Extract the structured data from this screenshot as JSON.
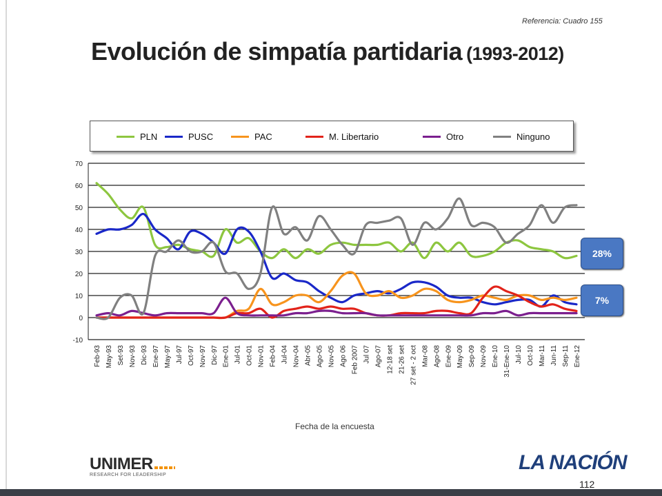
{
  "header": {
    "reference": "Referencia: Cuadro 155",
    "title": "Evolución de simpatía partidaria",
    "title_years": "(1993-2012)"
  },
  "callouts": {
    "top": "28%",
    "bottom": "7%"
  },
  "footer": {
    "unimer_brand": "UNIMER",
    "unimer_tagline": "RESEARCH FOR LEADERSHIP",
    "lanacion_brand": "LA NACIÓN",
    "page_number": "112"
  },
  "chart_data": {
    "type": "line",
    "title": "Evolución de simpatía partidaria (1993-2012)",
    "xlabel": "Fecha de la encuesta",
    "ylabel": "",
    "ylim": [
      -10,
      70
    ],
    "yticks": [
      -10,
      0,
      10,
      20,
      30,
      40,
      50,
      60,
      70
    ],
    "grid": true,
    "legend_position": "top",
    "categories": [
      "Feb-93",
      "May-93",
      "Set-93",
      "Nov-93",
      "Dic-93",
      "Ene-97",
      "May-97",
      "Jul-97",
      "Oct-97",
      "Nov-97",
      "Dic-97",
      "Ene-01",
      "Jul-01",
      "Oct-01",
      "Nov-01",
      "Feb-04",
      "Jul-04",
      "Nov-04",
      "Abr-05",
      "Ago-05",
      "Nov-05",
      "Ago 06",
      "Feb 2007",
      "Jul 07",
      "Ago-07",
      "12-18 set",
      "21-26 set",
      "27 set - 2 oct",
      "Mar-08",
      "Ago-08",
      "Ene-09",
      "May-09",
      "Sep-09",
      "Nov-09",
      "Ene-10",
      "31-Ene-10",
      "Jul-10",
      "Oct-10",
      "Mar-11",
      "Jun-11",
      "Sep-11",
      "Ene-12"
    ],
    "series": [
      {
        "name": "PLN",
        "color": "#8dc63f",
        "values": [
          61,
          56,
          49,
          45,
          50,
          33,
          32,
          33,
          31,
          30,
          28,
          40,
          34,
          36,
          30,
          27,
          31,
          27,
          31,
          29,
          33,
          34,
          33,
          33,
          33,
          34,
          30,
          34,
          27,
          34,
          30,
          34,
          28,
          28,
          30,
          34,
          35,
          32,
          31,
          30,
          27,
          28
        ]
      },
      {
        "name": "PUSC",
        "color": "#1a28c8",
        "values": [
          38,
          40,
          40,
          42,
          47,
          40,
          36,
          31,
          39,
          38,
          34,
          29,
          40,
          39,
          30,
          18,
          20,
          17,
          16,
          12,
          9,
          7,
          10,
          11,
          12,
          11,
          13,
          16,
          16,
          14,
          10,
          9,
          9,
          7,
          6,
          7,
          8,
          8,
          5,
          10,
          7,
          6
        ]
      },
      {
        "name": "PAC",
        "color": "#f7941d",
        "values": [
          0,
          0,
          0,
          0,
          0,
          0,
          0,
          0,
          0,
          0,
          0,
          0,
          3,
          4,
          13,
          6,
          7,
          10,
          10,
          7,
          12,
          19,
          20,
          11,
          10,
          12,
          9,
          10,
          13,
          12,
          8,
          7,
          8,
          10,
          9,
          8,
          10,
          10,
          8,
          9,
          8,
          9
        ]
      },
      {
        "name": "M. Libertario",
        "color": "#e2231a",
        "values": [
          0,
          0,
          0,
          0,
          0,
          0,
          0,
          0,
          0,
          0,
          0,
          0,
          2,
          2,
          4,
          0,
          3,
          4,
          5,
          4,
          5,
          4,
          4,
          2,
          1,
          1,
          2,
          2,
          2,
          3,
          3,
          2,
          2,
          9,
          14,
          12,
          10,
          7,
          5,
          6,
          4,
          3
        ]
      },
      {
        "name": "Otro",
        "color": "#7b1f8e",
        "values": [
          1,
          2,
          1,
          3,
          2,
          1,
          2,
          2,
          2,
          2,
          2,
          9,
          2,
          1,
          1,
          1,
          1,
          2,
          2,
          3,
          3,
          2,
          2,
          2,
          1,
          1,
          1,
          1,
          1,
          1,
          1,
          1,
          1,
          2,
          2,
          3,
          1,
          2,
          2,
          2,
          2,
          2
        ]
      },
      {
        "name": "Ninguno",
        "color": "#808080",
        "values": [
          0,
          0,
          9,
          10,
          2,
          28,
          30,
          35,
          30,
          30,
          34,
          21,
          20,
          13,
          20,
          50,
          38,
          41,
          35,
          46,
          40,
          33,
          29,
          42,
          43,
          44,
          45,
          33,
          43,
          40,
          45,
          54,
          42,
          43,
          41,
          34,
          38,
          42,
          51,
          43,
          50,
          51
        ]
      }
    ]
  }
}
